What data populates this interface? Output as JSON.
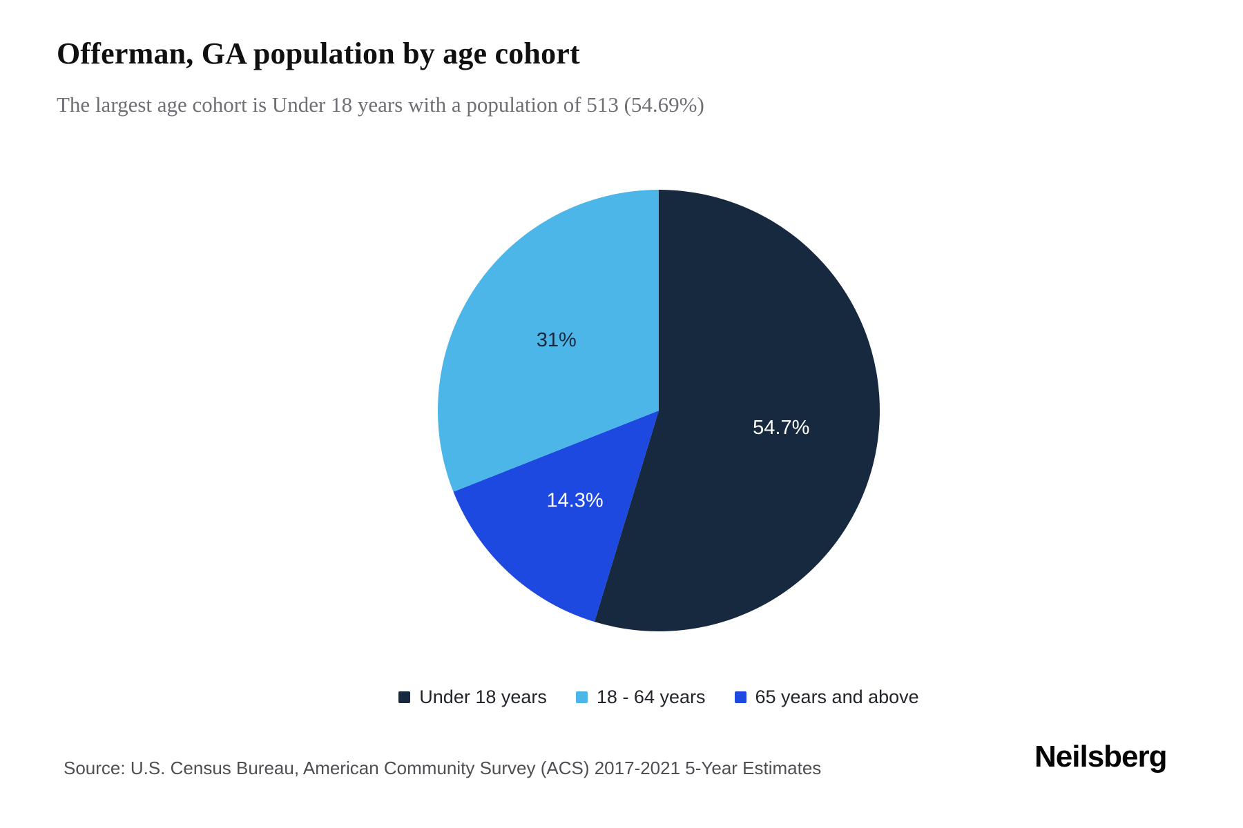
{
  "page": {
    "title": "Offerman, GA population by age cohort",
    "subtitle": "The largest age cohort is Under 18 years with a population of 513 (54.69%)",
    "source": "Source: U.S. Census Bureau, American Community Survey (ACS) 2017-2021 5-Year Estimates",
    "brand": "Neilsberg"
  },
  "chart_data": {
    "type": "pie",
    "title": "Offerman, GA population by age cohort",
    "subtitle": "The largest age cohort is Under 18 years with a population of 513 (54.69%)",
    "largest_cohort": {
      "label": "Under 18 years",
      "population": 513,
      "percent": 54.69
    },
    "slices": [
      {
        "label": "Under 18 years",
        "value": 54.7,
        "display": "54.7%",
        "color": "#16293e",
        "label_color": "#ffffff"
      },
      {
        "label": "18 - 64 years",
        "value": 31,
        "display": "31%",
        "color": "#4cb6e8",
        "label_color": "#16293e"
      },
      {
        "label": "65 years and above",
        "value": 14.3,
        "display": "14.3%",
        "color": "#1d49e0",
        "label_color": "#ffffff"
      }
    ],
    "legend_position": "bottom",
    "start_angle_deg": 0,
    "direction": "clockwise",
    "draw_order": [
      0,
      2,
      1
    ],
    "background": "#ffffff"
  }
}
